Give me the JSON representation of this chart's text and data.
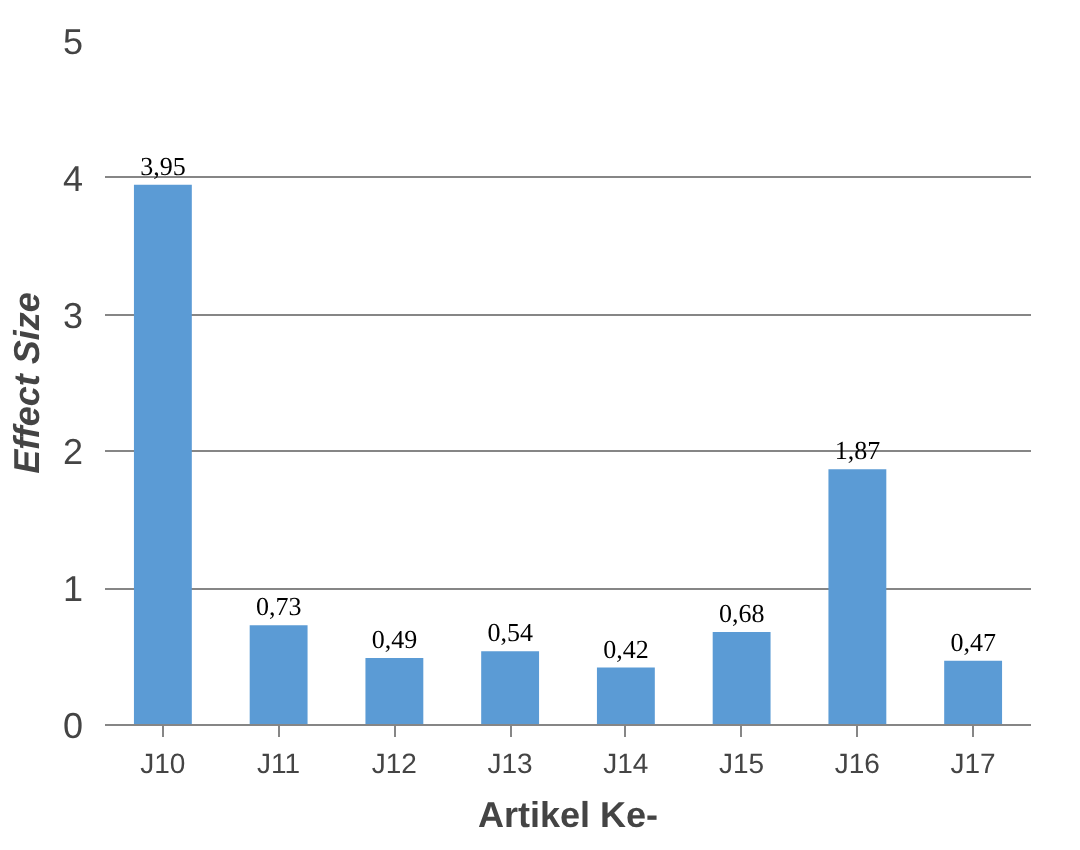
{
  "chart_data": {
    "type": "bar",
    "xlabel": "Artikel Ke-",
    "ylabel": "Effect Size",
    "categories": [
      "J10",
      "J11",
      "J12",
      "J13",
      "J14",
      "J15",
      "J16",
      "J17"
    ],
    "values": [
      3.95,
      0.73,
      0.49,
      0.54,
      0.42,
      0.68,
      1.87,
      0.47
    ],
    "value_labels": [
      "3,95",
      "0,73",
      "0,49",
      "0,54",
      "0,42",
      "0,68",
      "1,87",
      "0,47"
    ],
    "color": "#5b9bd5",
    "ylim": [
      0,
      5
    ],
    "yticks": [
      0,
      1,
      2,
      3,
      4,
      5
    ],
    "grid": "y"
  }
}
